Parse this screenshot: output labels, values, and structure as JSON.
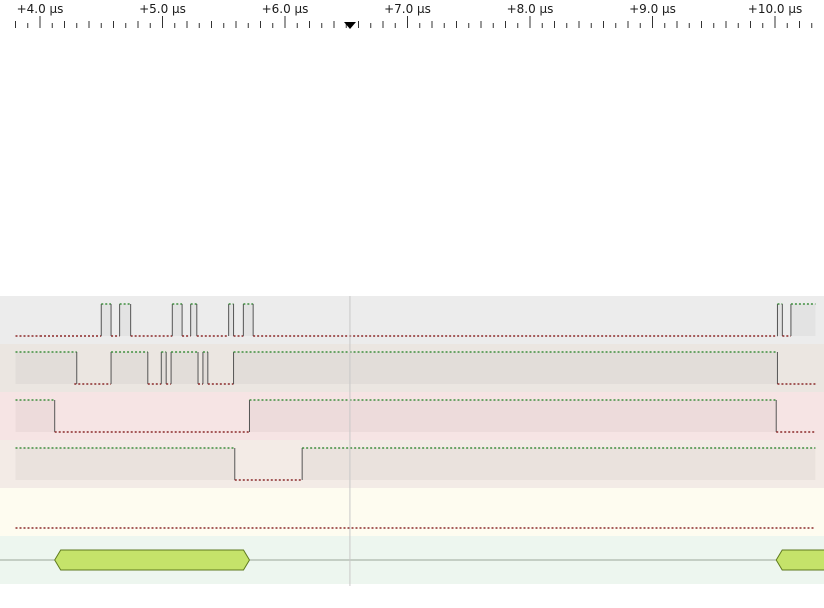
{
  "timebase": {
    "unit_label": "µs",
    "major_labels": [
      "+4.0 µs",
      "+5.0 µs",
      "+6.0 µs",
      "+7.0 µs",
      "+8.0 µs",
      "+9.0 µs",
      "+10.0 µs"
    ],
    "major_values": [
      4.0,
      5.0,
      6.0,
      7.0,
      8.0,
      9.0,
      10.0
    ],
    "view_range": [
      3.8,
      10.33
    ],
    "minor_per_major": 5,
    "cursor_time": 6.53
  },
  "channels": [
    {
      "id": "ch0",
      "bg": "#ececec",
      "transitions": [
        [
          3.8,
          0
        ],
        [
          4.0,
          0
        ],
        [
          4.5,
          1
        ],
        [
          4.58,
          0
        ],
        [
          4.65,
          1
        ],
        [
          4.74,
          0
        ],
        [
          5.08,
          1
        ],
        [
          5.16,
          0
        ],
        [
          5.23,
          1
        ],
        [
          5.28,
          0
        ],
        [
          5.54,
          1
        ],
        [
          5.58,
          0
        ],
        [
          5.66,
          1
        ],
        [
          5.74,
          0
        ],
        [
          10.02,
          1
        ],
        [
          10.06,
          0
        ],
        [
          10.13,
          1
        ],
        [
          10.33,
          1
        ]
      ]
    },
    {
      "id": "ch1",
      "bg": "#ebe6e1",
      "transitions": [
        [
          3.8,
          1
        ],
        [
          4.3,
          1
        ],
        [
          4.3,
          0
        ],
        [
          4.28,
          0
        ],
        [
          4.58,
          1
        ],
        [
          4.88,
          0
        ],
        [
          4.99,
          1
        ],
        [
          5.03,
          0
        ],
        [
          5.07,
          1
        ],
        [
          5.29,
          0
        ],
        [
          5.33,
          1
        ],
        [
          5.37,
          0
        ],
        [
          5.58,
          1
        ],
        [
          10.02,
          0
        ],
        [
          10.33,
          0
        ]
      ]
    },
    {
      "id": "ch2",
      "bg": "#f6e4e4",
      "transitions": [
        [
          3.8,
          1
        ],
        [
          4.12,
          0
        ],
        [
          5.71,
          1
        ],
        [
          10.01,
          0
        ],
        [
          10.33,
          0
        ]
      ]
    },
    {
      "id": "ch3",
      "bg": "#f3ebe6",
      "transitions": [
        [
          3.8,
          1
        ],
        [
          5.59,
          0
        ],
        [
          6.14,
          1
        ],
        [
          10.33,
          1
        ]
      ]
    },
    {
      "id": "ch4",
      "bg": "#fefcf0",
      "transitions": [
        [
          3.8,
          0
        ],
        [
          10.33,
          0
        ]
      ]
    },
    {
      "id": "ch5",
      "bg": "#edf6ef",
      "kind": "bus",
      "segments": [
        [
          4.12,
          5.71
        ],
        [
          10.01,
          10.5
        ]
      ]
    }
  ],
  "colors": {
    "high_trace": "#3f8f3f",
    "low_trace": "#8b2a2a",
    "edge": "#555555",
    "bus_fill": "#c5e36a",
    "bus_stroke": "#5f7a1f",
    "cursor_line": "#c8c8c8"
  }
}
